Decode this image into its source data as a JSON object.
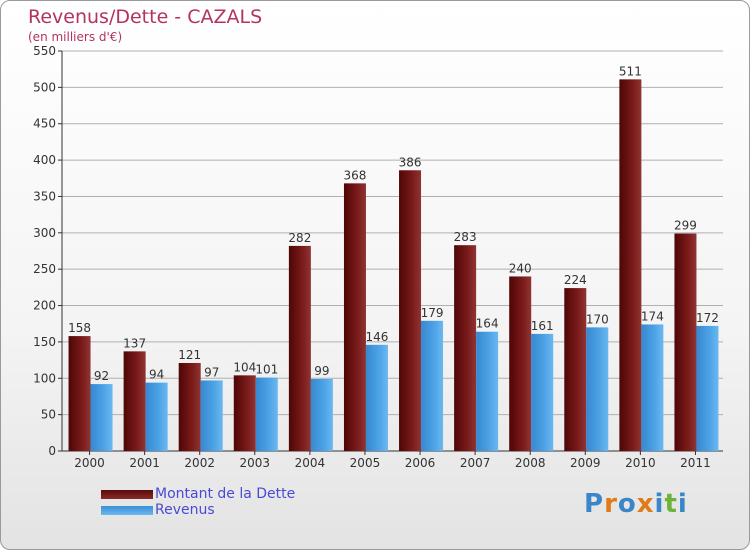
{
  "title": "Revenus/Dette - CAZALS",
  "subtitle": "(en milliers d'€)",
  "logo": {
    "text": "Proxiti",
    "letter_colors": [
      "#3a86c8",
      "#e07b1a",
      "#3a86c8",
      "#e07b1a",
      "#3a86c8",
      "#6bb33a",
      "#3a86c8"
    ]
  },
  "colors": {
    "dette": "#7a1a1a",
    "revenus": "#4da3e6",
    "axis": "#333333",
    "grid": "#b0b0b0"
  },
  "chart_data": {
    "type": "bar",
    "title": "Revenus/Dette - CAZALS",
    "ylabel": "(en milliers d'€)",
    "xlabel": "",
    "ylim": [
      0,
      550
    ],
    "yticks": [
      0,
      50,
      100,
      150,
      200,
      250,
      300,
      350,
      400,
      450,
      500,
      550
    ],
    "grid": true,
    "legend_position": "bottom-left",
    "categories": [
      "2000",
      "2001",
      "2002",
      "2003",
      "2004",
      "2005",
      "2006",
      "2007",
      "2008",
      "2009",
      "2010",
      "2011"
    ],
    "series": [
      {
        "name": "Montant de la Dette",
        "values": [
          158,
          137,
          121,
          104,
          282,
          368,
          386,
          283,
          240,
          224,
          511,
          299
        ]
      },
      {
        "name": "Revenus",
        "values": [
          92,
          94,
          97,
          101,
          99,
          146,
          179,
          164,
          161,
          170,
          174,
          172
        ]
      }
    ]
  }
}
